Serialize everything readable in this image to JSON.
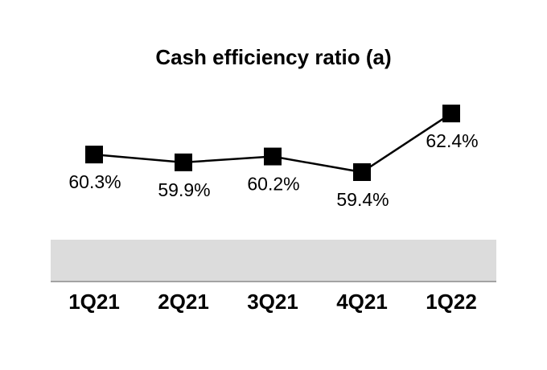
{
  "chart_data": {
    "type": "line",
    "title": "Cash efficiency ratio (a)",
    "categories": [
      "1Q21",
      "2Q21",
      "3Q21",
      "4Q21",
      "1Q22"
    ],
    "values": [
      60.3,
      59.9,
      60.2,
      59.4,
      62.4
    ],
    "point_labels": [
      "60.3%",
      "59.9%",
      "60.2%",
      "59.4%",
      "62.4%"
    ],
    "xlabel": "",
    "ylabel": "",
    "ylim": [
      58,
      64
    ],
    "grid": false,
    "legend": false,
    "marker_shape": "square",
    "colors": {
      "line": "#000000",
      "marker": "#000000",
      "label_text": "#000000",
      "title_text": "#000000",
      "axis_text": "#000000",
      "band_fill": "#dcdcdc",
      "band_border": "#a3a3a3",
      "background": "#ffffff"
    }
  }
}
